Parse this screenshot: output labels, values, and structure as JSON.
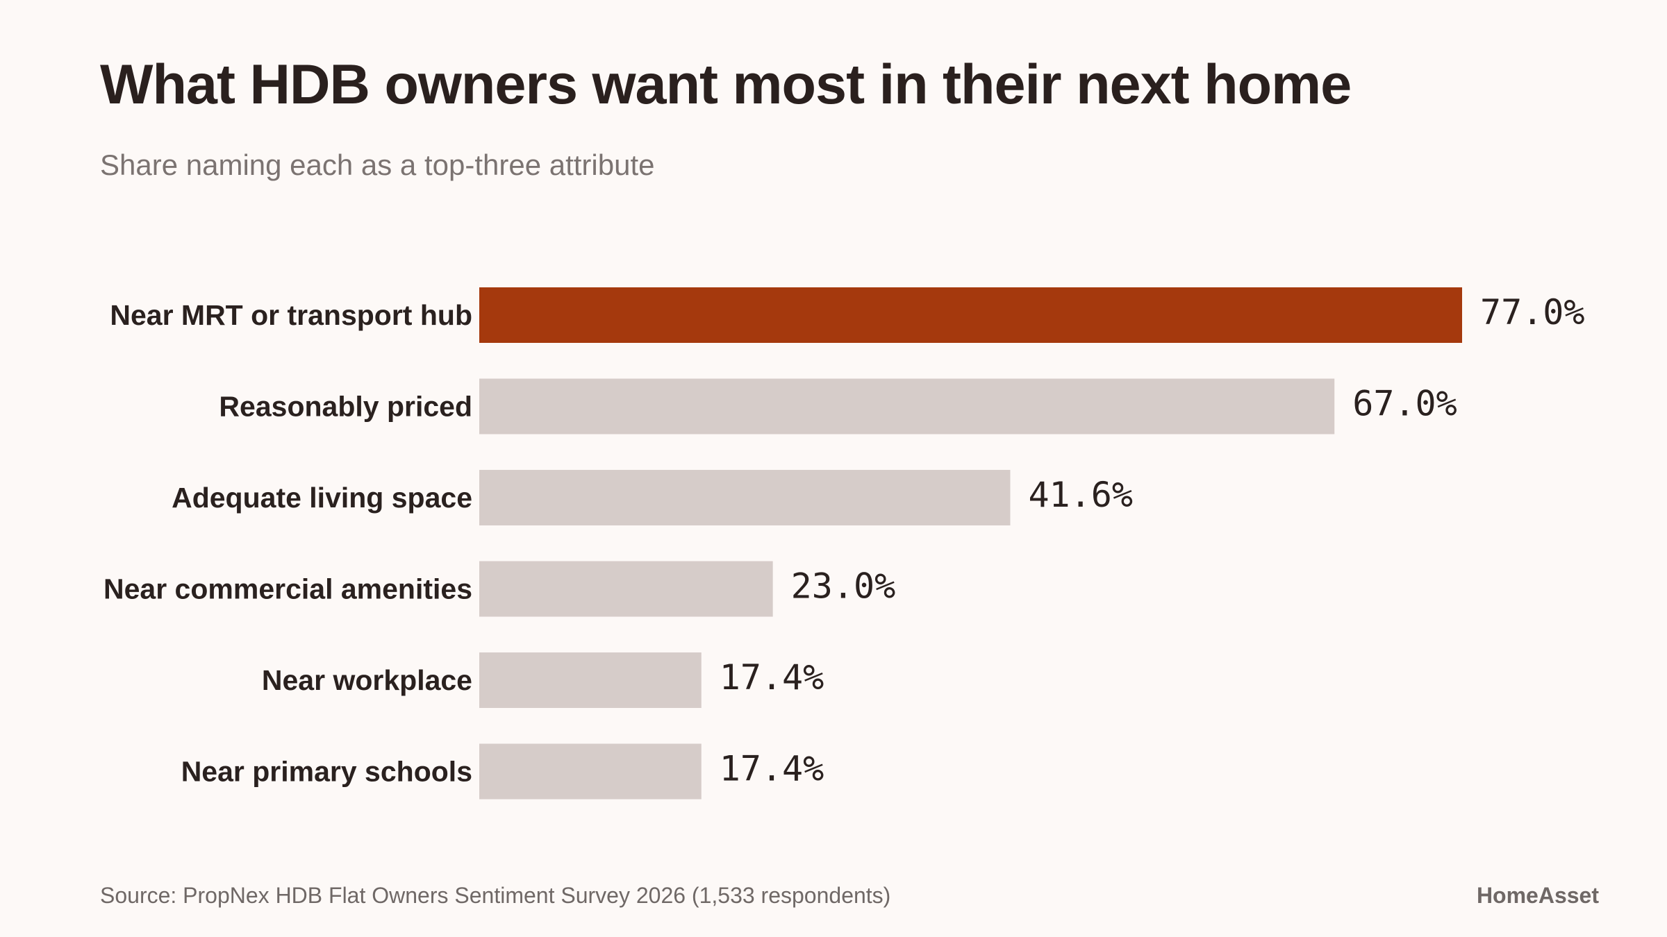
{
  "header": {
    "title": "What HDB owners want most in their next home",
    "subtitle": "Share naming each as a top-three attribute"
  },
  "chart_data": {
    "type": "bar",
    "orientation": "horizontal",
    "categories": [
      "Near MRT or transport hub",
      "Reasonably priced",
      "Adequate living space",
      "Near commercial amenities",
      "Near workplace",
      "Near primary schools"
    ],
    "values": [
      77.0,
      67.0,
      41.6,
      23.0,
      17.4,
      17.4
    ],
    "value_labels": [
      "77.0%",
      "67.0%",
      "41.6%",
      "23.0%",
      "17.4%",
      "17.4%"
    ],
    "xlim": [
      0,
      77.0
    ],
    "grid": false,
    "highlight_index": 0,
    "colors": {
      "highlight": "#a5390d",
      "default": "#d6ccc9",
      "label_text": "#2a211f",
      "value_text": "#2a211f"
    }
  },
  "footer": {
    "source": "Source: PropNex HDB Flat Owners Sentiment Survey 2026 (1,533 respondents)",
    "brand": "HomeAsset"
  }
}
